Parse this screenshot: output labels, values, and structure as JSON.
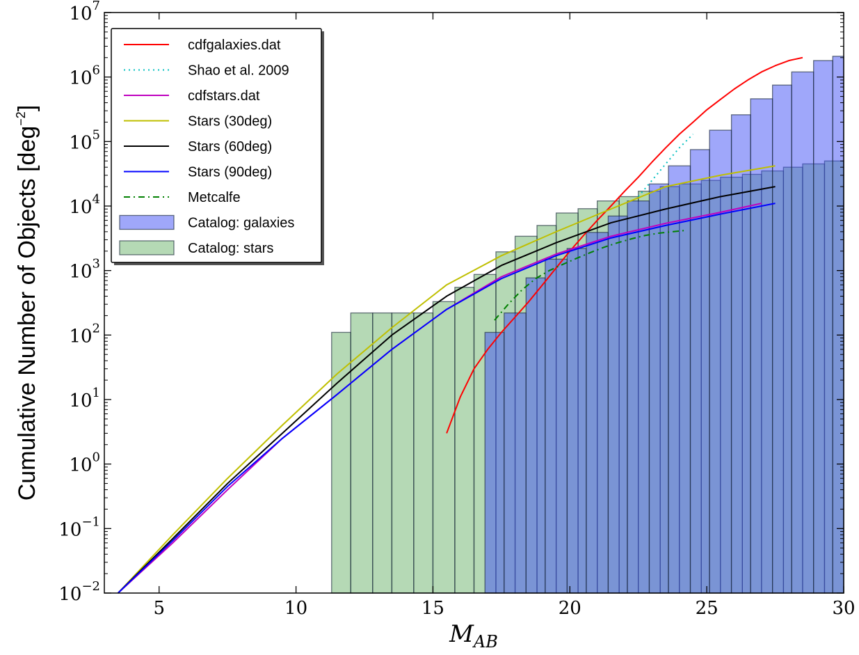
{
  "chart_data": {
    "type": "histogram",
    "title": "",
    "xlabel": "M",
    "xlabel_subscript": "AB",
    "ylabel": "Cumulative Number of Objects [deg",
    "ylabel_unit_suffix": "]",
    "ylabel_exponent": "−2",
    "xlim": [
      3,
      30
    ],
    "ylim": [
      0.01,
      10000000
    ],
    "yscale": "log",
    "grid": false,
    "legend_position": "top-left",
    "x_ticks": [
      5,
      10,
      15,
      20,
      25,
      30
    ],
    "y_ticks": [
      {
        "value": 0.01,
        "base": "10",
        "exp": "−2"
      },
      {
        "value": 0.1,
        "base": "10",
        "exp": "−1"
      },
      {
        "value": 1,
        "base": "10",
        "exp": "0"
      },
      {
        "value": 10,
        "base": "10",
        "exp": "1"
      },
      {
        "value": 100,
        "base": "10",
        "exp": "2"
      },
      {
        "value": 1000,
        "base": "10",
        "exp": "3"
      },
      {
        "value": 10000,
        "base": "10",
        "exp": "4"
      },
      {
        "value": 100000,
        "base": "10",
        "exp": "5"
      },
      {
        "value": 1000000,
        "base": "10",
        "exp": "6"
      },
      {
        "value": 10000000,
        "base": "10",
        "exp": "7"
      }
    ],
    "histograms": [
      {
        "name": "Catalog: stars",
        "color": "#5aab5a",
        "opacity": 0.45,
        "bins": [
          {
            "x0": 11.3,
            "x1": 12.0,
            "value": 110
          },
          {
            "x0": 12.0,
            "x1": 12.8,
            "value": 220
          },
          {
            "x0": 12.8,
            "x1": 13.5,
            "value": 220
          },
          {
            "x0": 13.5,
            "x1": 14.3,
            "value": 220
          },
          {
            "x0": 14.3,
            "x1": 15.0,
            "value": 220
          },
          {
            "x0": 15.0,
            "x1": 15.8,
            "value": 330
          },
          {
            "x0": 15.8,
            "x1": 16.5,
            "value": 550
          },
          {
            "x0": 16.5,
            "x1": 17.3,
            "value": 870
          },
          {
            "x0": 17.3,
            "x1": 18.0,
            "value": 1950
          },
          {
            "x0": 18.0,
            "x1": 18.8,
            "value": 3400
          },
          {
            "x0": 18.8,
            "x1": 19.5,
            "value": 5000
          },
          {
            "x0": 19.5,
            "x1": 20.3,
            "value": 7800
          },
          {
            "x0": 20.3,
            "x1": 21.0,
            "value": 9100
          },
          {
            "x0": 21.0,
            "x1": 21.8,
            "value": 12000
          },
          {
            "x0": 21.8,
            "x1": 22.5,
            "value": 14000
          },
          {
            "x0": 22.5,
            "x1": 23.3,
            "value": 17000
          },
          {
            "x0": 23.3,
            "x1": 24.0,
            "value": 20000
          },
          {
            "x0": 24.0,
            "x1": 24.8,
            "value": 22000
          },
          {
            "x0": 24.8,
            "x1": 25.5,
            "value": 25000
          },
          {
            "x0": 25.5,
            "x1": 26.3,
            "value": 28000
          },
          {
            "x0": 26.3,
            "x1": 27.0,
            "value": 31000
          },
          {
            "x0": 27.0,
            "x1": 27.8,
            "value": 35000
          },
          {
            "x0": 27.8,
            "x1": 28.5,
            "value": 40000
          },
          {
            "x0": 28.5,
            "x1": 29.3,
            "value": 45000
          },
          {
            "x0": 29.3,
            "x1": 30.0,
            "value": 50000
          }
        ]
      },
      {
        "name": "Catalog: galaxies",
        "color": "#3f4ff5",
        "opacity": 0.5,
        "bins": [
          {
            "x0": 16.9,
            "x1": 17.6,
            "value": 110
          },
          {
            "x0": 17.6,
            "x1": 18.4,
            "value": 220
          },
          {
            "x0": 18.4,
            "x1": 19.1,
            "value": 770
          },
          {
            "x0": 19.1,
            "x1": 19.9,
            "value": 1500
          },
          {
            "x0": 19.9,
            "x1": 20.6,
            "value": 2200
          },
          {
            "x0": 20.6,
            "x1": 21.4,
            "value": 3900
          },
          {
            "x0": 21.4,
            "x1": 22.1,
            "value": 7000
          },
          {
            "x0": 22.1,
            "x1": 22.9,
            "value": 12000
          },
          {
            "x0": 22.9,
            "x1": 23.6,
            "value": 22000
          },
          {
            "x0": 23.6,
            "x1": 24.4,
            "value": 42000
          },
          {
            "x0": 24.4,
            "x1": 25.1,
            "value": 75000
          },
          {
            "x0": 25.1,
            "x1": 25.9,
            "value": 150000
          },
          {
            "x0": 25.9,
            "x1": 26.6,
            "value": 260000
          },
          {
            "x0": 26.6,
            "x1": 27.4,
            "value": 460000
          },
          {
            "x0": 27.4,
            "x1": 28.1,
            "value": 750000
          },
          {
            "x0": 28.1,
            "x1": 28.9,
            "value": 1200000
          },
          {
            "x0": 28.9,
            "x1": 29.6,
            "value": 1800000
          },
          {
            "x0": 29.6,
            "x1": 30.0,
            "value": 2100000
          }
        ]
      }
    ],
    "series": [
      {
        "name": "cdfgalaxies.dat",
        "color": "#ff0000",
        "style": "solid",
        "x": [
          15.5,
          16.0,
          16.5,
          17.0,
          17.5,
          18.0,
          18.5,
          19.0,
          19.5,
          20.0,
          20.5,
          21.0,
          21.5,
          22.0,
          22.5,
          23.0,
          23.5,
          24.0,
          24.5,
          25.0,
          25.5,
          26.0,
          26.5,
          27.0,
          27.5,
          28.0,
          28.5
        ],
        "y": [
          3,
          11,
          30,
          60,
          110,
          190,
          330,
          600,
          1100,
          2000,
          3500,
          6000,
          10000,
          17000,
          28000,
          48000,
          80000,
          130000,
          200000,
          310000,
          450000,
          650000,
          900000,
          1200000,
          1500000,
          1800000,
          2000000
        ]
      },
      {
        "name": "Shao et al. 2009",
        "color": "#00bfbf",
        "style": "dotted",
        "x": [
          22.5,
          23.0,
          23.5,
          24.0,
          24.5
        ],
        "y": [
          14000,
          25000,
          45000,
          80000,
          130000
        ]
      },
      {
        "name": "cdfstars.dat",
        "color": "#bf00bf",
        "style": "solid",
        "x": [
          3.5,
          5.5,
          7.5,
          9.5,
          11.5,
          13.5,
          15.5,
          17.5,
          19.5,
          21.5,
          23.5,
          25.5,
          27.0
        ],
        "y": [
          0.01,
          0.06,
          0.4,
          2.5,
          12,
          60,
          250,
          800,
          1800,
          3400,
          5400,
          8000,
          11000
        ]
      },
      {
        "name": "Stars (30deg)",
        "color": "#bfbf00",
        "style": "solid",
        "x": [
          3.5,
          5.5,
          7.5,
          9.5,
          11.5,
          13.5,
          15.5,
          17.5,
          19.5,
          21.5,
          23.5,
          25.5,
          27.5
        ],
        "y": [
          0.01,
          0.08,
          0.6,
          4,
          25,
          130,
          600,
          1700,
          4000,
          9000,
          20000,
          30000,
          42000
        ]
      },
      {
        "name": "Stars (60deg)",
        "color": "#000000",
        "style": "solid",
        "x": [
          3.5,
          5.5,
          7.5,
          9.5,
          11.5,
          13.5,
          15.5,
          17.5,
          19.5,
          21.5,
          23.5,
          25.5,
          27.5
        ],
        "y": [
          0.01,
          0.07,
          0.5,
          3,
          18,
          100,
          400,
          1200,
          2700,
          5500,
          9000,
          14000,
          20000
        ]
      },
      {
        "name": "Stars (90deg)",
        "color": "#0000ff",
        "style": "solid",
        "x": [
          3.5,
          5.5,
          7.5,
          9.5,
          11.5,
          13.5,
          15.5,
          17.5,
          19.5,
          21.5,
          23.5,
          25.5,
          27.5
        ],
        "y": [
          0.01,
          0.065,
          0.45,
          2.5,
          12,
          60,
          250,
          750,
          1700,
          3200,
          5000,
          7500,
          11000
        ]
      },
      {
        "name": "Metcalfe",
        "color": "#008000",
        "style": "dashdot",
        "x": [
          17.25,
          17.75,
          18.25,
          18.75,
          19.25,
          19.75,
          20.25,
          20.75,
          21.25,
          21.75,
          22.25,
          22.75,
          23.25,
          23.75,
          24.25
        ],
        "y": [
          170,
          300,
          500,
          750,
          1000,
          1250,
          1550,
          1900,
          2300,
          2700,
          3100,
          3500,
          3800,
          4000,
          4200
        ]
      }
    ],
    "legend": [
      {
        "label": "cdfgalaxies.dat",
        "kind": "line",
        "color": "#ff0000",
        "style": "solid"
      },
      {
        "label": "Shao et al. 2009",
        "kind": "line",
        "color": "#00bfbf",
        "style": "dotted"
      },
      {
        "label": "cdfstars.dat",
        "kind": "line",
        "color": "#bf00bf",
        "style": "solid"
      },
      {
        "label": "Stars (30deg)",
        "kind": "line",
        "color": "#bfbf00",
        "style": "solid"
      },
      {
        "label": "Stars (60deg)",
        "kind": "line",
        "color": "#000000",
        "style": "solid"
      },
      {
        "label": "Stars (90deg)",
        "kind": "line",
        "color": "#0000ff",
        "style": "solid"
      },
      {
        "label": "Metcalfe",
        "kind": "line",
        "color": "#008000",
        "style": "dashdot"
      },
      {
        "label": "Catalog: galaxies",
        "kind": "patch",
        "color": "#3f4ff5",
        "opacity": 0.5
      },
      {
        "label": "Catalog: stars",
        "kind": "patch",
        "color": "#5aab5a",
        "opacity": 0.45
      }
    ]
  }
}
